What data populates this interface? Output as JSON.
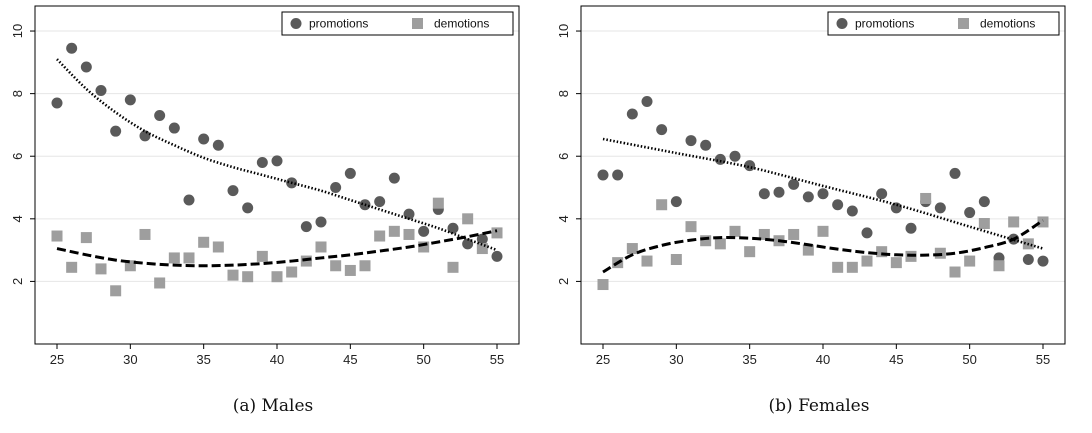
{
  "chart_data": [
    {
      "panel_id": "males",
      "type": "scatter",
      "caption": "(a)  Males",
      "xlim": [
        23.5,
        56.5
      ],
      "ylim": [
        0,
        10.8
      ],
      "xticks": [
        25,
        30,
        35,
        40,
        45,
        50,
        55
      ],
      "yticks": [
        2,
        4,
        6,
        8,
        10
      ],
      "grid": "horizontal",
      "legend_position": "top-right",
      "series": [
        {
          "name": "promotions",
          "marker": "circle",
          "color": "#5a5a5a",
          "x": [
            25,
            26,
            27,
            28,
            29,
            30,
            31,
            32,
            33,
            34,
            35,
            36,
            37,
            38,
            39,
            40,
            41,
            42,
            43,
            44,
            45,
            46,
            47,
            48,
            49,
            50,
            51,
            52,
            53,
            54,
            55
          ],
          "y": [
            7.7,
            9.45,
            8.85,
            8.1,
            6.8,
            7.8,
            6.65,
            7.3,
            6.9,
            4.6,
            6.55,
            6.35,
            4.9,
            4.35,
            5.8,
            5.85,
            5.15,
            3.75,
            3.9,
            5.0,
            5.45,
            4.45,
            4.55,
            5.3,
            4.15,
            3.6,
            4.3,
            3.7,
            3.2,
            3.35,
            2.8
          ]
        },
        {
          "name": "demotions",
          "marker": "square",
          "color": "#9e9e9e",
          "x": [
            25,
            26,
            27,
            28,
            29,
            30,
            31,
            32,
            33,
            34,
            35,
            36,
            37,
            38,
            39,
            40,
            41,
            42,
            43,
            44,
            45,
            46,
            47,
            48,
            49,
            50,
            51,
            52,
            53,
            54,
            55
          ],
          "y": [
            3.45,
            2.45,
            3.4,
            2.4,
            1.7,
            2.5,
            3.5,
            1.95,
            2.75,
            2.75,
            3.25,
            3.1,
            2.2,
            2.15,
            2.8,
            2.15,
            2.3,
            2.65,
            3.1,
            2.5,
            2.35,
            2.5,
            3.45,
            3.6,
            3.5,
            3.1,
            4.5,
            2.45,
            4.0,
            3.05,
            3.55
          ]
        }
      ],
      "fits": [
        {
          "series": "promotions",
          "style": "dotted",
          "x": [
            25,
            27,
            29,
            31,
            33,
            35,
            37,
            39,
            41,
            43,
            45,
            47,
            49,
            51,
            53,
            55
          ],
          "y": [
            9.1,
            8.15,
            7.4,
            6.8,
            6.35,
            5.95,
            5.65,
            5.4,
            5.15,
            4.9,
            4.6,
            4.3,
            4.0,
            3.7,
            3.35,
            3.0
          ]
        },
        {
          "series": "demotions",
          "style": "dashed",
          "x": [
            25,
            27,
            29,
            31,
            33,
            35,
            37,
            39,
            41,
            43,
            45,
            47,
            49,
            51,
            53,
            55
          ],
          "y": [
            3.05,
            2.85,
            2.68,
            2.58,
            2.52,
            2.5,
            2.52,
            2.57,
            2.65,
            2.75,
            2.85,
            2.97,
            3.1,
            3.26,
            3.43,
            3.62
          ]
        }
      ]
    },
    {
      "panel_id": "females",
      "type": "scatter",
      "caption": "(b)  Females",
      "xlim": [
        23.5,
        56.5
      ],
      "ylim": [
        0,
        10.8
      ],
      "xticks": [
        25,
        30,
        35,
        40,
        45,
        50,
        55
      ],
      "yticks": [
        2,
        4,
        6,
        8,
        10
      ],
      "grid": "horizontal",
      "legend_position": "top-right",
      "series": [
        {
          "name": "promotions",
          "marker": "circle",
          "color": "#5a5a5a",
          "x": [
            25,
            26,
            27,
            28,
            29,
            30,
            31,
            32,
            33,
            34,
            35,
            36,
            37,
            38,
            39,
            40,
            41,
            42,
            43,
            44,
            45,
            46,
            47,
            48,
            49,
            50,
            51,
            52,
            53,
            54,
            55
          ],
          "y": [
            5.4,
            5.4,
            7.35,
            7.75,
            6.85,
            4.55,
            6.5,
            6.35,
            5.9,
            6.0,
            5.7,
            4.8,
            4.85,
            5.1,
            4.7,
            4.8,
            4.45,
            4.25,
            3.55,
            4.8,
            4.35,
            3.7,
            4.55,
            4.35,
            5.45,
            4.2,
            4.55,
            2.75,
            3.35,
            2.7,
            2.65
          ]
        },
        {
          "name": "demotions",
          "marker": "square",
          "color": "#9e9e9e",
          "x": [
            25,
            26,
            27,
            28,
            29,
            30,
            31,
            32,
            33,
            34,
            35,
            36,
            37,
            38,
            39,
            40,
            41,
            42,
            43,
            44,
            45,
            46,
            47,
            48,
            49,
            50,
            51,
            52,
            53,
            54,
            55
          ],
          "y": [
            1.9,
            2.6,
            3.05,
            2.65,
            4.45,
            2.7,
            3.75,
            3.3,
            3.2,
            3.6,
            2.95,
            3.5,
            3.3,
            3.5,
            3.0,
            3.6,
            2.45,
            2.45,
            2.65,
            2.95,
            2.6,
            2.8,
            4.65,
            2.9,
            2.3,
            2.65,
            3.85,
            2.5,
            3.9,
            3.2,
            3.9
          ]
        }
      ],
      "fits": [
        {
          "series": "promotions",
          "style": "dotted",
          "x": [
            25,
            30,
            35,
            40,
            45,
            50,
            55
          ],
          "y": [
            6.55,
            6.1,
            5.65,
            5.05,
            4.45,
            3.75,
            3.05
          ]
        },
        {
          "series": "demotions",
          "style": "dashed",
          "x": [
            25,
            27,
            29,
            31,
            33,
            35,
            37,
            39,
            41,
            43,
            45,
            47,
            49,
            51,
            53,
            55
          ],
          "y": [
            2.3,
            2.85,
            3.15,
            3.32,
            3.4,
            3.38,
            3.3,
            3.17,
            3.03,
            2.92,
            2.85,
            2.84,
            2.9,
            3.08,
            3.35,
            3.95
          ]
        }
      ]
    }
  ]
}
